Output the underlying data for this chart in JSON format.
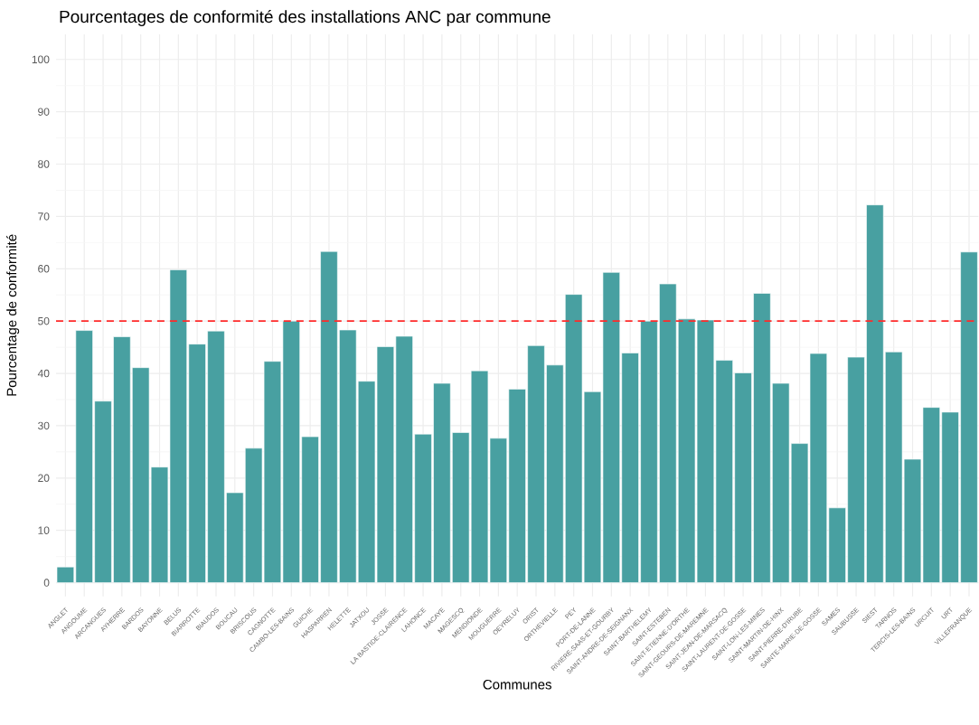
{
  "chart_data": {
    "type": "bar",
    "title": "Pourcentages de conformité des installations ANC par commune",
    "xlabel": "Communes",
    "ylabel": "Pourcentage de conformité",
    "categories": [
      "ANGLET",
      "ANGOUME",
      "ARCANGUES",
      "AYHERRE",
      "BARDOS",
      "BAYONNE",
      "BELUS",
      "BIARROTTE",
      "BIAUDOS",
      "BOUCAU",
      "BRISCOUS",
      "CAGNOTTE",
      "CAMBO-LES-BAINS",
      "GUICHE",
      "HASPARREN",
      "HELETTE",
      "JATXOU",
      "JOSSE",
      "LA BASTIDE-CLAIRENCE",
      "LAHONCE",
      "MACAYE",
      "MAGESCQ",
      "MENDIONDE",
      "MOUGUERRE",
      "OEYRELUY",
      "ORIST",
      "ORTHEVIELLE",
      "PEY",
      "PORT-DE-LANNE",
      "RIVIERE-SAAS-ET-GOURBY",
      "SAINT-ANDRE-DE-SEIGNANX",
      "SAINT-BARTHELEMY",
      "SAINT-ESTEBEN",
      "SAINT-ETIENNE-D'ORTHE",
      "SAINT-GEOURS-DE-MAREMNE",
      "SAINT-JEAN-DE-MARSACQ",
      "SAINT-LAURENT-DE-GOSSE",
      "SAINT-LON-LES-MINES",
      "SAINT-MARTIN-DE-HINX",
      "SAINT-PIERRE-D'IRUBE",
      "SAINTE-MARIE-DE-GOSSE",
      "SAMES",
      "SAUBUSSE",
      "SIEST",
      "TARNOS",
      "TERCIS-LES-BAINS",
      "URCUIT",
      "URT",
      "VILLEFRANQUE"
    ],
    "values": [
      3,
      48.2,
      34.7,
      47,
      41.1,
      22.1,
      59.8,
      45.6,
      48.1,
      17.2,
      25.7,
      42.3,
      50,
      27.9,
      63.3,
      48.3,
      38.5,
      45.1,
      47.1,
      28.4,
      38.1,
      28.7,
      40.5,
      27.6,
      37,
      45.3,
      41.6,
      55.1,
      36.5,
      59.3,
      43.9,
      50,
      57.1,
      50.4,
      50.2,
      42.5,
      40.1,
      55.3,
      38.1,
      26.6,
      43.8,
      14.3,
      43.1,
      72.2,
      44.1,
      23.6,
      33.5,
      32.6,
      63.2
    ],
    "color": "#48a0a1",
    "ylim": [
      -2.6,
      104.8
    ],
    "yticks": [
      0,
      10,
      20,
      30,
      40,
      50,
      60,
      70,
      80,
      90,
      100
    ],
    "grid": true,
    "ref_lines": [
      {
        "axis": "y",
        "value": 50,
        "color": "#ff2a2a",
        "line_style": "dashed"
      }
    ]
  }
}
